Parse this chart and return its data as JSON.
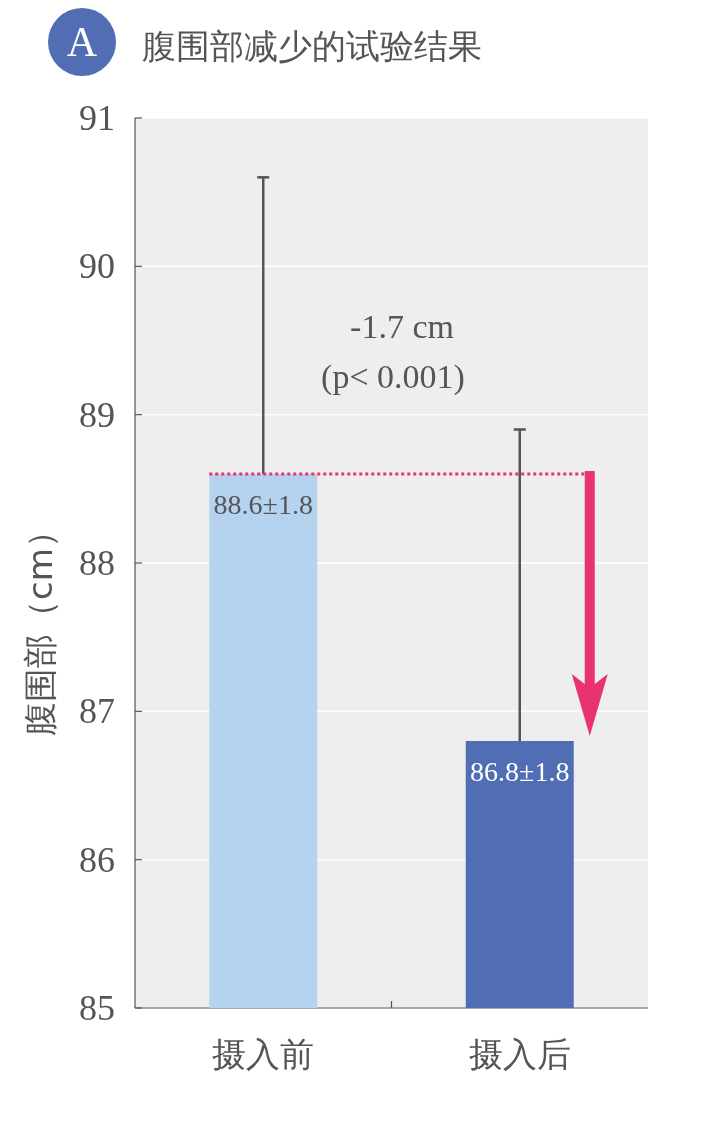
{
  "chart_data": {
    "type": "bar",
    "title": "腹围部减少的试验结果",
    "ylabel": "腹围部（cm）",
    "categories": [
      "摄入前",
      "摄入后"
    ],
    "values": [
      88.6,
      86.8
    ],
    "colors": [
      "#b5d3ef",
      "#516eb4"
    ],
    "errors": [
      [
        88.6,
        90.6
      ],
      [
        86.8,
        88.9
      ]
    ],
    "value_labels": [
      "88.6±1.8",
      "86.8±1.8"
    ],
    "annotations": [
      "A",
      "-1.7 cm",
      "(p< 0.001)"
    ],
    "ref_lines": [
      {
        "axis": "y",
        "value": 88.6,
        "color": "#e8336e",
        "line_style": "dotted"
      }
    ],
    "ylim": [
      85,
      91
    ],
    "yticks": [
      85,
      86,
      87,
      88,
      89,
      90,
      91
    ],
    "grid": "y"
  }
}
